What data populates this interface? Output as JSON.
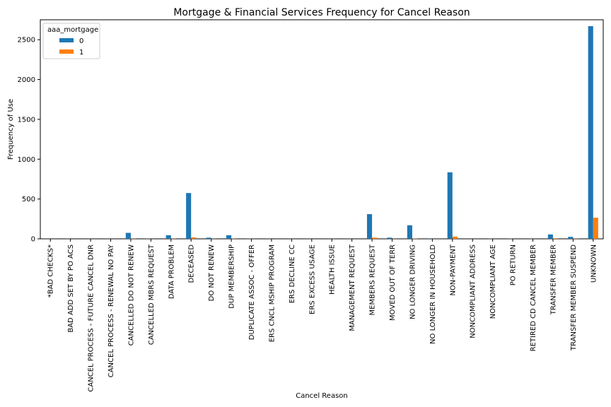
{
  "chart_data": {
    "type": "bar",
    "title": "Mortgage & Financial Services Frequency for Cancel Reason",
    "xlabel": "Cancel Reason",
    "ylabel": "Frequency of Use",
    "ylim": [
      0,
      2750
    ],
    "yticks": [
      0,
      500,
      1000,
      1500,
      2000,
      2500
    ],
    "grid": false,
    "legend": {
      "title": "aaa_mortgage",
      "placement": "top-left"
    },
    "categories": [
      "*BAD CHECKS*",
      "BAD ADD SET BY PO ACS",
      "CANCEL PROCESS - FUTURE CANCEL DNR",
      "CANCEL PROCESS - RENEWAL NO PAY",
      "CANCELLED DO NOT RENEW",
      "CANCELLED MBRS REQUEST",
      "DATA PROBLEM",
      "DECEASED",
      "DO NOT RENEW",
      "DUP MEMBERSHIP",
      "DUPLICATE ASSOC - OFFER",
      "ERS CNCL MSHIP PROGRAM",
      "ERS DECLINE CC",
      "ERS EXCESS USAGE",
      "HEALTH ISSUE",
      "MANAGEMENT REQUEST",
      "MEMBERS REQUEST",
      "MOVED OUT OF TERR",
      "NO LONGER DRIVING",
      "NO LONGER IN HOUSEHOLD",
      "NON-PAYMENT",
      "NONCOMPLIANT ADDRESS",
      "NONCOMPLIANT AGE",
      "PO RETURN",
      "RETIRED CD CANCEL MEMBER",
      "TRANSFER MEMBER",
      "TRANSFER MEMBER SUSPEND",
      "UNKNOWN"
    ],
    "series": [
      {
        "name": "0",
        "color": "#1f77b4",
        "values": [
          1,
          1,
          1,
          1,
          75,
          2,
          45,
          575,
          15,
          45,
          2,
          1,
          1,
          1,
          1,
          1,
          310,
          15,
          170,
          1,
          835,
          1,
          2,
          2,
          1,
          55,
          25,
          2670
        ]
      },
      {
        "name": "1",
        "color": "#ff7f0e",
        "values": [
          0,
          0,
          0,
          0,
          2,
          0,
          2,
          18,
          1,
          2,
          0,
          0,
          0,
          0,
          0,
          0,
          15,
          1,
          3,
          0,
          28,
          0,
          0,
          0,
          0,
          8,
          2,
          265
        ]
      }
    ]
  }
}
